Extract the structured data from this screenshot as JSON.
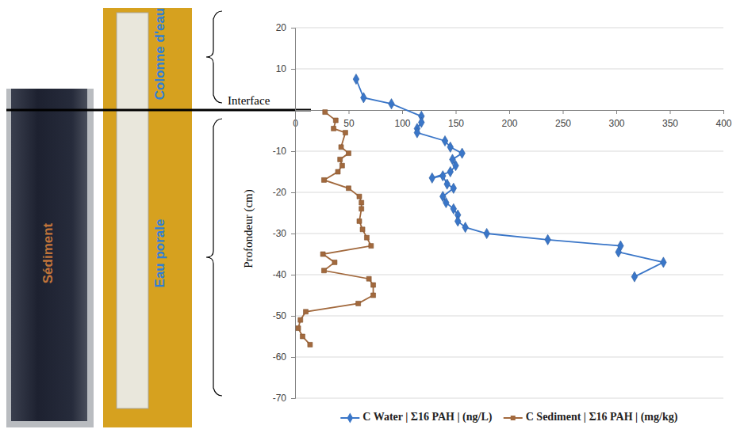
{
  "chart_data": {
    "type": "line",
    "y_label": "Profondeur (cm)",
    "annotations": [
      "Colonne d'eau",
      "Eau porale",
      "Sédiment",
      "Interface"
    ],
    "xlim": [
      0,
      400
    ],
    "xticks": [
      0,
      50,
      100,
      150,
      200,
      250,
      300,
      350,
      400
    ],
    "ylim": [
      -70,
      20
    ],
    "yticks": [
      20,
      10,
      -10,
      -20,
      -30,
      -40,
      -50,
      -60,
      -70
    ],
    "grid": true,
    "legend": "bottom",
    "series": [
      {
        "name": "C Water | Σ16 PAH | (ng/L)",
        "color": "#3a76c8",
        "marker": "diamond",
        "x": [
          57,
          64,
          90,
          118,
          118,
          114,
          114,
          140,
          145,
          156,
          147,
          150,
          145,
          128,
          138,
          142,
          148,
          138,
          141,
          148,
          152,
          152,
          159,
          179,
          236,
          304,
          302,
          344,
          317
        ],
        "values": [
          7.5,
          3,
          1.5,
          -1.5,
          -3,
          -4.5,
          -5.5,
          -7.5,
          -9,
          -10.5,
          -12,
          -13.5,
          -15,
          -16.5,
          -16,
          -18,
          -19,
          -21,
          -22.5,
          -24,
          -25.5,
          -27,
          -28.5,
          -30,
          -31.5,
          -33,
          -34.5,
          -37,
          -40.5
        ]
      },
      {
        "name": "C Sediment | Σ16 PAH | (mg/kg)",
        "color": "#a2693d",
        "marker": "square",
        "x": [
          28,
          38,
          36,
          47,
          43,
          50,
          42,
          44,
          40,
          27,
          50,
          60,
          62,
          62,
          60,
          63,
          67,
          71,
          26,
          37,
          27,
          69,
          73,
          73,
          59,
          10,
          5,
          3,
          7,
          14
        ],
        "values": [
          -0.5,
          -2.5,
          -4.5,
          -5.5,
          -9,
          -10.5,
          -12,
          -13.5,
          -15,
          -17,
          -19,
          -21,
          -22.5,
          -24,
          -27,
          -29,
          -31,
          -33,
          -35,
          -37,
          -39,
          -41,
          -42.5,
          -45,
          -47,
          -49,
          -51,
          -53,
          -55,
          -57
        ]
      }
    ]
  }
}
